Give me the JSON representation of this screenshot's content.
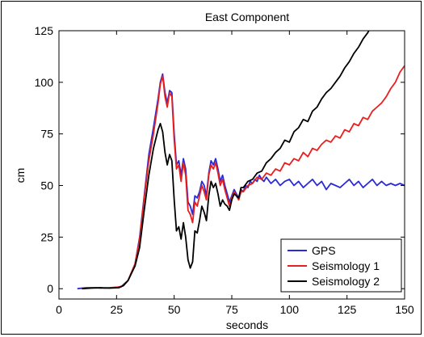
{
  "chart_data": {
    "type": "line",
    "title": "East Component",
    "xlabel": "seconds",
    "ylabel": "cm",
    "xlim": [
      0,
      150
    ],
    "ylim": [
      -5,
      125
    ],
    "xticks": [
      "0",
      "25",
      "50",
      "75",
      "100",
      "125",
      "150"
    ],
    "yticks": [
      "0",
      "25",
      "50",
      "75",
      "100",
      "125"
    ],
    "grid": false,
    "legend_position": "bottom-right",
    "series": [
      {
        "name": "GPS",
        "color": "#2b2bd6",
        "x": [
          8,
          12,
          16,
          20,
          24,
          27,
          30,
          33,
          35,
          37,
          39,
          41,
          43,
          44,
          45,
          46,
          47,
          48,
          49,
          50,
          51,
          52,
          53,
          54,
          55,
          56,
          57,
          58,
          59,
          60,
          61,
          62,
          63,
          64,
          65,
          66,
          67,
          68,
          69,
          70,
          71,
          72,
          73,
          74,
          75,
          76,
          77,
          78,
          79,
          80,
          81,
          82,
          83,
          84,
          85,
          86,
          87,
          88,
          89,
          90,
          92,
          94,
          96,
          98,
          100,
          102,
          104,
          106,
          108,
          110,
          112,
          114,
          116,
          118,
          120,
          122,
          124,
          126,
          128,
          130,
          132,
          134,
          136,
          138,
          140,
          142,
          144,
          146,
          148,
          150
        ],
        "y": [
          0,
          0.5,
          0.5,
          0.3,
          0.5,
          1,
          4,
          12,
          25,
          45,
          65,
          78,
          92,
          100,
          104,
          95,
          90,
          96,
          95,
          75,
          60,
          62,
          55,
          63,
          58,
          42,
          40,
          36,
          45,
          44,
          47,
          52,
          50,
          45,
          56,
          62,
          60,
          63,
          58,
          52,
          55,
          50,
          46,
          42,
          45,
          48,
          46,
          44,
          48,
          47,
          50,
          49,
          52,
          51,
          53,
          52,
          55,
          53,
          52,
          54,
          51,
          53,
          50,
          52,
          53,
          50,
          52,
          49,
          51,
          53,
          50,
          52,
          48,
          51,
          50,
          49,
          51,
          53,
          50,
          52,
          49,
          51,
          53,
          50,
          52,
          50,
          51,
          50,
          51,
          50
        ]
      },
      {
        "name": "Seismology 1",
        "color": "#e81f1f",
        "x": [
          10,
          14,
          18,
          22,
          26,
          28,
          30,
          33,
          35,
          37,
          39,
          41,
          43,
          44,
          45,
          46,
          47,
          48,
          49,
          50,
          51,
          52,
          53,
          54,
          55,
          56,
          57,
          58,
          59,
          60,
          61,
          62,
          63,
          64,
          65,
          66,
          67,
          68,
          69,
          70,
          71,
          72,
          73,
          74,
          75,
          76,
          77,
          78,
          79,
          80,
          82,
          84,
          86,
          88,
          90,
          92,
          94,
          96,
          98,
          100,
          102,
          104,
          106,
          108,
          110,
          112,
          114,
          116,
          118,
          120,
          122,
          124,
          126,
          128,
          130,
          132,
          134,
          136,
          138,
          140,
          142,
          144,
          146,
          148,
          150
        ],
        "y": [
          0,
          0.5,
          0.3,
          0.5,
          0.8,
          1.5,
          4,
          12,
          24,
          44,
          62,
          75,
          90,
          99,
          103,
          93,
          88,
          95,
          93,
          72,
          58,
          60,
          52,
          61,
          55,
          38,
          36,
          32,
          42,
          40,
          45,
          50,
          47,
          43,
          55,
          60,
          58,
          61,
          56,
          50,
          53,
          48,
          44,
          40,
          44,
          47,
          45,
          43,
          47,
          47,
          50,
          51,
          54,
          53,
          56,
          55,
          58,
          57,
          61,
          60,
          63,
          62,
          66,
          64,
          68,
          67,
          70,
          72,
          71,
          74,
          73,
          77,
          76,
          80,
          79,
          83,
          82,
          86,
          88,
          90,
          93,
          97,
          100,
          105,
          108
        ]
      },
      {
        "name": "Seismology 2",
        "color": "#000000",
        "x": [
          10,
          14,
          18,
          22,
          26,
          28,
          30,
          33,
          35,
          37,
          39,
          41,
          43,
          44,
          45,
          46,
          47,
          48,
          49,
          50,
          51,
          52,
          53,
          54,
          55,
          56,
          57,
          58,
          59,
          60,
          61,
          62,
          63,
          64,
          65,
          66,
          67,
          68,
          69,
          70,
          71,
          72,
          73,
          74,
          75,
          76,
          77,
          78,
          79,
          80,
          82,
          84,
          86,
          88,
          90,
          92,
          94,
          96,
          98,
          100,
          102,
          104,
          106,
          108,
          110,
          112,
          114,
          116,
          118,
          120,
          122,
          124,
          126,
          128,
          130,
          132,
          134,
          135
        ],
        "y": [
          0,
          0.3,
          0.5,
          0.3,
          0.5,
          1.5,
          4,
          11,
          20,
          38,
          55,
          68,
          77,
          80,
          76,
          66,
          60,
          65,
          62,
          43,
          28,
          30,
          24,
          32,
          25,
          14,
          10,
          13,
          28,
          27,
          33,
          40,
          37,
          33,
          45,
          52,
          49,
          51,
          46,
          40,
          43,
          41,
          40,
          38,
          43,
          46,
          45,
          44,
          49,
          49,
          52,
          53,
          56,
          57,
          61,
          63,
          66,
          68,
          72,
          71,
          76,
          78,
          82,
          81,
          86,
          88,
          92,
          95,
          97,
          100,
          103,
          107,
          110,
          114,
          117,
          121,
          124,
          126
        ]
      }
    ]
  }
}
